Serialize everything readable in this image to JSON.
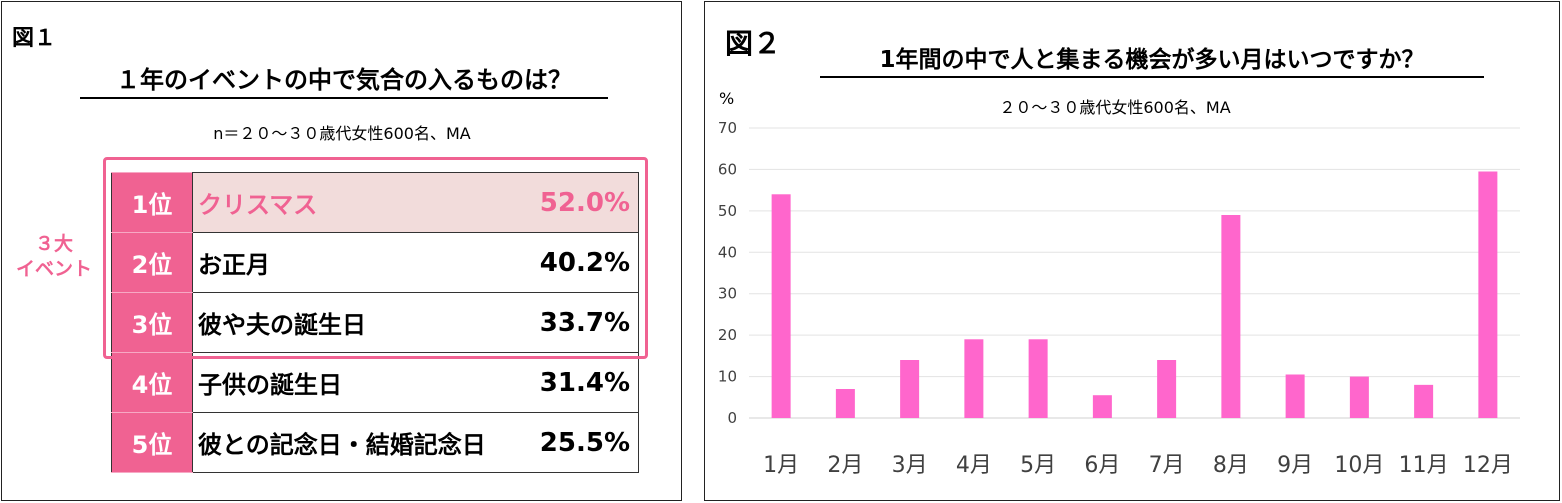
{
  "figure1": {
    "label": "図１",
    "title": "１年のイベントの中で気合の入るものは？",
    "note": "n＝２０～３０歳代女性600名、MA",
    "top3_label": "３大\nイベント",
    "rows": [
      {
        "rank": "1位",
        "name": "クリスマス",
        "pct": "52.0%"
      },
      {
        "rank": "2位",
        "name": "お正月",
        "pct": "40.2%"
      },
      {
        "rank": "3位",
        "name": "彼や夫の誕生日",
        "pct": "33.7%"
      },
      {
        "rank": "4位",
        "name": "子供の誕生日",
        "pct": "31.4%"
      },
      {
        "rank": "5位",
        "name": "彼との記念日・結婚記念日",
        "pct": "25.5%"
      }
    ],
    "colors": {
      "accent": "#f06292",
      "highlight_bg": "#f2dcdb"
    }
  },
  "figure2": {
    "label": "図２",
    "title": "1年間の中で人と集まる機会が多い月はいつですか？",
    "note": "２０～３０歳代女性600名、MA",
    "unit_label": "%"
  },
  "chart_data": {
    "type": "bar",
    "categories": [
      "1月",
      "2月",
      "3月",
      "4月",
      "5月",
      "6月",
      "7月",
      "8月",
      "9月",
      "10月",
      "11月",
      "12月"
    ],
    "values": [
      54,
      7,
      14,
      19,
      19,
      5.5,
      14,
      49,
      10.5,
      10,
      8,
      59.5
    ],
    "ylim": [
      0,
      70
    ],
    "yticks": [
      0,
      10,
      20,
      30,
      40,
      50,
      60,
      70
    ],
    "grid": true,
    "bar_color": "#ff66cc"
  }
}
